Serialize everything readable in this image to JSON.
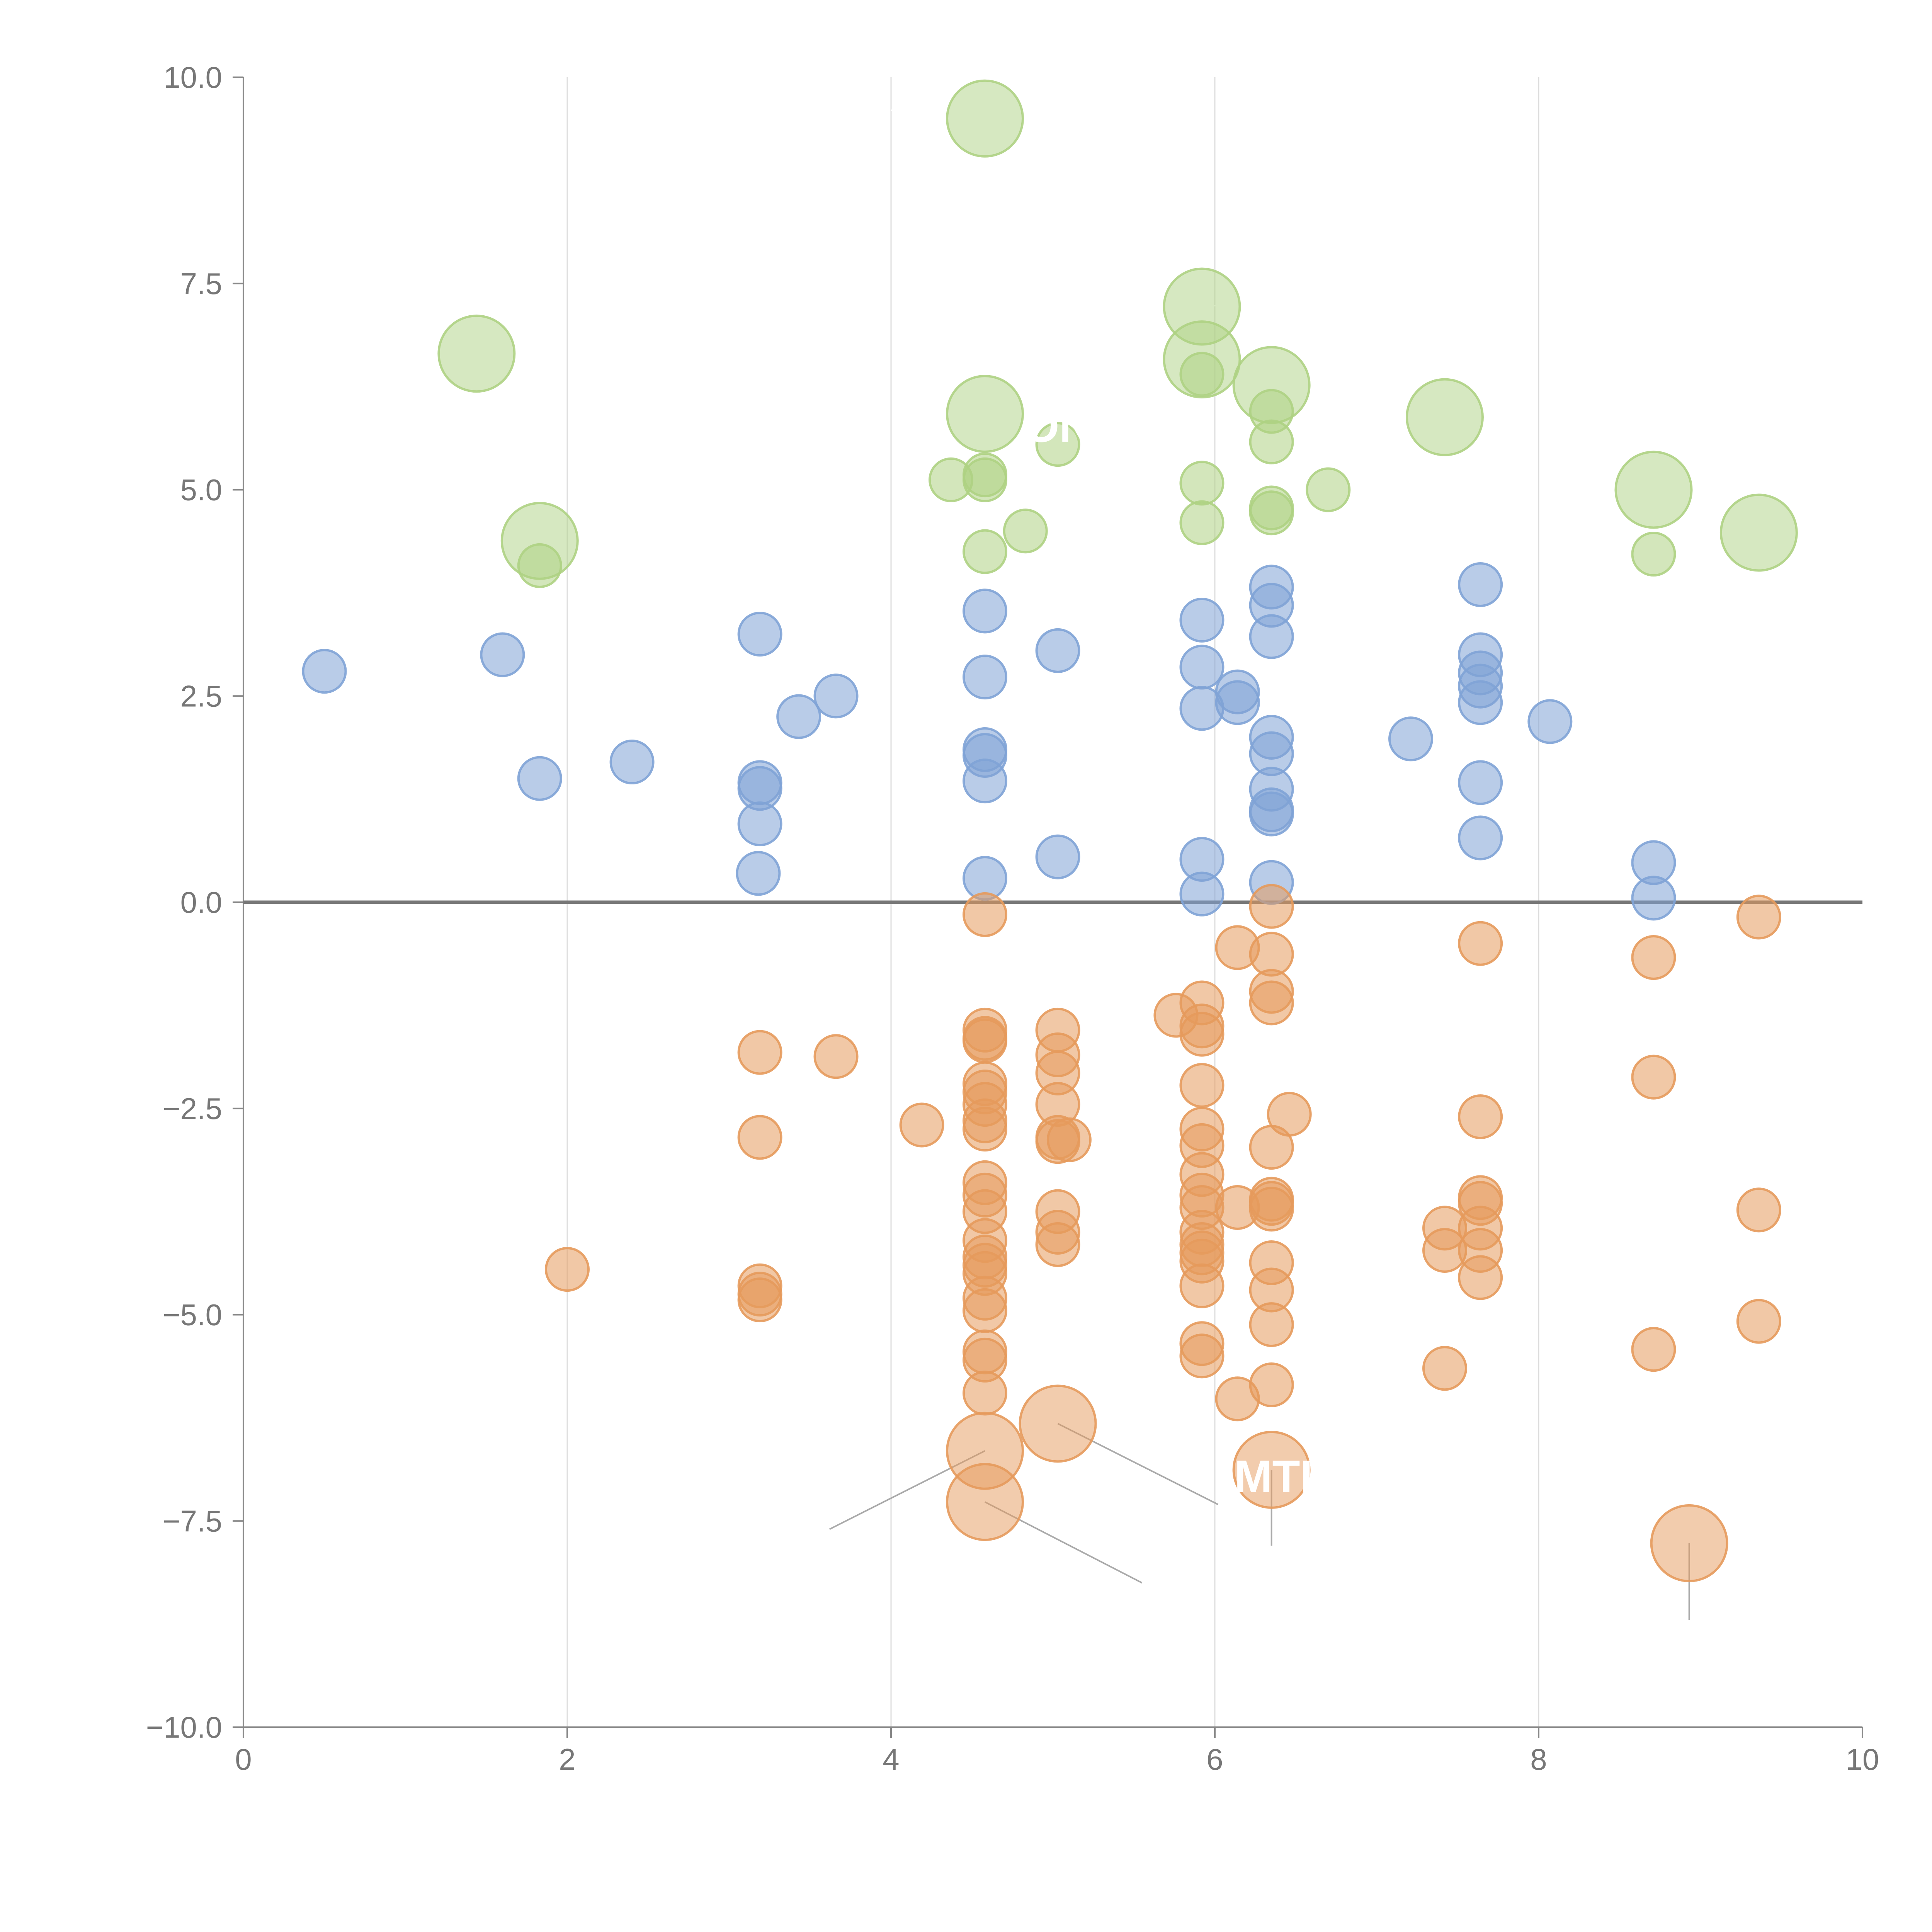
{
  "colors": {
    "blue": "#7fa3d6",
    "orange": "#e59a5c",
    "green": "#aed183",
    "grid": "#dddddd",
    "axis": "#888888",
    "zero_line": "#777777",
    "tick_label": "#777777",
    "leader_light": "#ffffff",
    "leader_dark": "#aaaaaa"
  },
  "chart_data": {
    "type": "scatter",
    "title": "",
    "xlabel": "",
    "ylabel": "",
    "xlim": [
      0,
      10
    ],
    "ylim": [
      -10,
      10
    ],
    "grid": "vertical",
    "x_ticks": [
      "0",
      "2",
      "4",
      "6",
      "8",
      "10"
    ],
    "x_tick_values": [
      0,
      2,
      4,
      6,
      8,
      10
    ],
    "y_ticks": [
      "10.0",
      "7.5",
      "5.0",
      "2.5",
      "0.0",
      "−2.5",
      "−5.0",
      "−7.5",
      "−10.0"
    ],
    "y_tick_values": [
      10,
      7.5,
      5,
      2.5,
      0,
      -2.5,
      -5,
      -7.5,
      -10
    ],
    "series": [
      {
        "name": "blue",
        "color": "blue",
        "small_points": [
          [
            0.5,
            2.8
          ],
          [
            1.6,
            3.0
          ],
          [
            1.83,
            1.5
          ],
          [
            2.4,
            1.7
          ],
          [
            3.19,
            3.25
          ],
          [
            3.43,
            2.25
          ],
          [
            3.66,
            2.5
          ],
          [
            3.19,
            1.45
          ],
          [
            3.19,
            1.38
          ],
          [
            3.19,
            0.95
          ],
          [
            3.18,
            0.35
          ],
          [
            4.58,
            3.53
          ],
          [
            4.58,
            2.73
          ],
          [
            4.58,
            1.85
          ],
          [
            4.58,
            1.78
          ],
          [
            4.58,
            1.47
          ],
          [
            4.58,
            0.29
          ],
          [
            5.03,
            3.05
          ],
          [
            5.03,
            0.55
          ],
          [
            5.92,
            3.42
          ],
          [
            5.92,
            2.85
          ],
          [
            5.92,
            2.35
          ],
          [
            5.92,
            0.52
          ],
          [
            5.92,
            0.1
          ],
          [
            6.14,
            2.55
          ],
          [
            6.14,
            2.42
          ],
          [
            6.35,
            3.82
          ],
          [
            6.35,
            3.6
          ],
          [
            6.35,
            3.22
          ],
          [
            6.35,
            2.0
          ],
          [
            6.35,
            1.8
          ],
          [
            6.35,
            1.37
          ],
          [
            6.35,
            1.12
          ],
          [
            6.35,
            1.07
          ],
          [
            6.35,
            0.24
          ],
          [
            7.21,
            1.98
          ],
          [
            7.64,
            3.85
          ],
          [
            7.64,
            3.0
          ],
          [
            7.64,
            2.78
          ],
          [
            7.64,
            2.62
          ],
          [
            7.64,
            2.42
          ],
          [
            7.64,
            1.45
          ],
          [
            7.64,
            0.78
          ],
          [
            8.07,
            2.19
          ],
          [
            8.71,
            0.48
          ],
          [
            8.71,
            0.05
          ]
        ],
        "large_points": []
      },
      {
        "name": "orange",
        "color": "orange",
        "small_points": [
          [
            2.0,
            -4.45
          ],
          [
            3.19,
            -1.82
          ],
          [
            3.19,
            -2.85
          ],
          [
            3.19,
            -4.65
          ],
          [
            3.19,
            -4.75
          ],
          [
            3.19,
            -4.82
          ],
          [
            3.66,
            -1.87
          ],
          [
            4.19,
            -2.7
          ],
          [
            4.58,
            -0.15
          ],
          [
            4.58,
            -1.55
          ],
          [
            4.58,
            -1.65
          ],
          [
            4.58,
            -1.68
          ],
          [
            4.58,
            -2.2
          ],
          [
            4.58,
            -2.3
          ],
          [
            4.58,
            -2.45
          ],
          [
            4.58,
            -2.65
          ],
          [
            4.58,
            -2.75
          ],
          [
            4.58,
            -3.4
          ],
          [
            4.58,
            -3.55
          ],
          [
            4.58,
            -3.75
          ],
          [
            4.58,
            -4.1
          ],
          [
            4.58,
            -4.3
          ],
          [
            4.58,
            -4.4
          ],
          [
            4.58,
            -4.5
          ],
          [
            4.58,
            -4.8
          ],
          [
            4.58,
            -4.95
          ],
          [
            4.58,
            -5.45
          ],
          [
            4.58,
            -5.55
          ],
          [
            4.58,
            -5.95
          ],
          [
            5.03,
            -1.55
          ],
          [
            5.03,
            -1.85
          ],
          [
            5.03,
            -2.07
          ],
          [
            5.03,
            -2.45
          ],
          [
            5.03,
            -2.85
          ],
          [
            5.03,
            -2.9
          ],
          [
            5.1,
            -2.88
          ],
          [
            5.03,
            -3.75
          ],
          [
            5.03,
            -4.0
          ],
          [
            5.03,
            -4.15
          ],
          [
            5.76,
            -1.37
          ],
          [
            5.92,
            -1.22
          ],
          [
            5.92,
            -1.5
          ],
          [
            5.92,
            -1.6
          ],
          [
            5.92,
            -2.22
          ],
          [
            5.92,
            -2.75
          ],
          [
            5.92,
            -2.95
          ],
          [
            5.92,
            -3.3
          ],
          [
            5.92,
            -3.55
          ],
          [
            5.92,
            -3.7
          ],
          [
            5.92,
            -4.0
          ],
          [
            5.92,
            -4.15
          ],
          [
            5.92,
            -4.25
          ],
          [
            5.92,
            -4.35
          ],
          [
            5.92,
            -4.65
          ],
          [
            5.92,
            -5.35
          ],
          [
            5.92,
            -5.5
          ],
          [
            6.14,
            -0.55
          ],
          [
            6.14,
            -3.7
          ],
          [
            6.14,
            -6.02
          ],
          [
            6.35,
            -0.05
          ],
          [
            6.35,
            -0.63
          ],
          [
            6.35,
            -1.08
          ],
          [
            6.35,
            -1.22
          ],
          [
            6.35,
            -2.97
          ],
          [
            6.35,
            -3.6
          ],
          [
            6.35,
            -3.65
          ],
          [
            6.35,
            -3.72
          ],
          [
            6.35,
            -4.37
          ],
          [
            6.35,
            -4.7
          ],
          [
            6.35,
            -5.12
          ],
          [
            6.35,
            -5.85
          ],
          [
            6.46,
            -2.57
          ],
          [
            7.42,
            -3.95
          ],
          [
            7.42,
            -4.22
          ],
          [
            7.42,
            -5.65
          ],
          [
            7.64,
            -0.5
          ],
          [
            7.64,
            -2.6
          ],
          [
            7.64,
            -3.58
          ],
          [
            7.64,
            -3.65
          ],
          [
            7.64,
            -3.95
          ],
          [
            7.64,
            -4.22
          ],
          [
            7.64,
            -4.55
          ],
          [
            8.71,
            -0.67
          ],
          [
            8.71,
            -2.12
          ],
          [
            8.71,
            -5.42
          ],
          [
            9.36,
            -0.18
          ],
          [
            9.36,
            -3.73
          ],
          [
            9.36,
            -5.08
          ]
        ],
        "large_points": [
          [
            4.58,
            -6.65
          ],
          [
            4.58,
            -7.27
          ],
          [
            5.03,
            -6.32
          ],
          [
            6.35,
            -6.88
          ],
          [
            8.93,
            -7.77
          ]
        ]
      },
      {
        "name": "green",
        "color": "green",
        "small_points": [
          [
            1.83,
            4.08
          ],
          [
            4.37,
            5.12
          ],
          [
            4.58,
            5.18
          ],
          [
            4.58,
            5.12
          ],
          [
            4.58,
            4.25
          ],
          [
            4.83,
            4.5
          ],
          [
            5.03,
            5.55
          ],
          [
            5.92,
            6.4
          ],
          [
            5.92,
            5.08
          ],
          [
            5.92,
            4.6
          ],
          [
            6.35,
            5.95
          ],
          [
            6.35,
            5.58
          ],
          [
            6.35,
            4.78
          ],
          [
            6.35,
            4.72
          ],
          [
            6.7,
            5.0
          ],
          [
            8.71,
            4.22
          ]
        ],
        "large_points": [
          [
            1.44,
            6.65
          ],
          [
            1.83,
            4.38
          ],
          [
            4.58,
            9.5
          ],
          [
            4.58,
            5.92
          ],
          [
            5.92,
            7.22
          ],
          [
            5.92,
            6.58
          ],
          [
            6.35,
            6.27
          ],
          [
            7.42,
            5.88
          ],
          [
            8.71,
            5.0
          ],
          [
            9.36,
            4.48
          ]
        ]
      }
    ],
    "annotations": [
      {
        "text": "ON",
        "x": 4.82,
        "y": 5.58
      },
      {
        "text": "MTI",
        "x": 6.12,
        "y": -7.15
      }
    ]
  }
}
